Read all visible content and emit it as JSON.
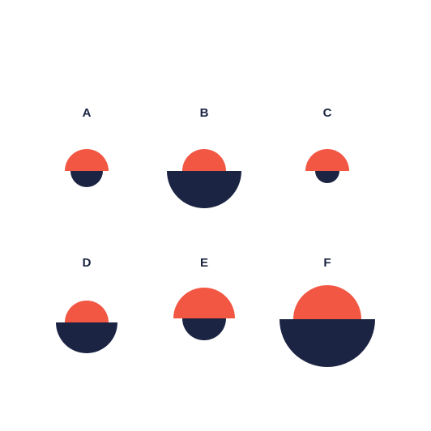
{
  "colors": {
    "top": "#f25744",
    "bottom": "#1b2442",
    "label": "#1b2442",
    "background": "#ffffff"
  },
  "items": [
    {
      "label": "A"
    },
    {
      "label": "B"
    },
    {
      "label": "C"
    },
    {
      "label": "D"
    },
    {
      "label": "E"
    },
    {
      "label": "F"
    }
  ]
}
